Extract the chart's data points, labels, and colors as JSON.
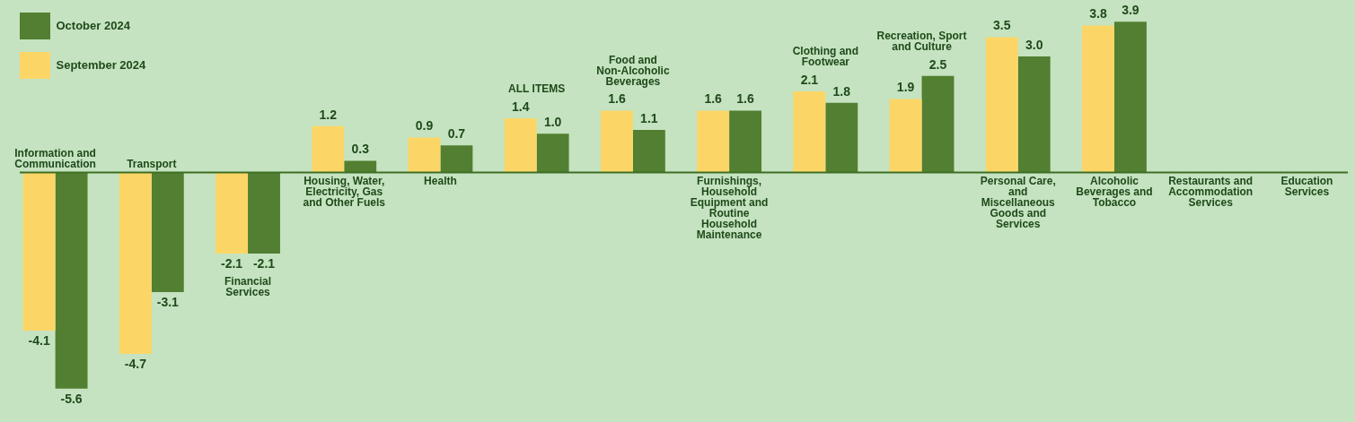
{
  "chart_data": {
    "type": "bar",
    "categories": [
      "Information and Communication",
      "Transport",
      "Financial Services",
      "Housing, Water, Electricity, Gas and Other Fuels",
      "Health",
      "ALL ITEMS",
      "Food and Non-Alcoholic Beverages",
      "Furnishings, Household Equipment and Routine Household Maintenance",
      "Clothing and Footwear",
      "Recreation, Sport and Culture",
      "Personal Care, and Miscellaneous Goods and Services",
      "Alcoholic Beverages and Tobacco",
      "Restaurants and Accommodation Services",
      "Education Services"
    ],
    "series": [
      {
        "name": "September 2024",
        "color": "#fbd667",
        "values": [
          -4.1,
          -4.7,
          -2.1,
          1.2,
          0.9,
          1.4,
          1.6,
          1.6,
          2.1,
          1.9,
          3.5,
          3.8,
          null,
          null
        ],
        "value_labels": [
          "-4.1",
          "-4.7",
          "-2.1",
          "1.2",
          "0.9",
          "1.4",
          "1.6",
          "1.6",
          "2.1",
          "1.9",
          "3.5",
          "3.8",
          null,
          null
        ]
      },
      {
        "name": "October 2024",
        "color": "#527f31",
        "values": [
          -5.6,
          -3.1,
          -2.1,
          0.3,
          0.7,
          1.0,
          1.1,
          1.6,
          1.8,
          2.5,
          3.0,
          3.9,
          null,
          null
        ],
        "value_labels": [
          "-5.6",
          "-3.1",
          "-2.1",
          "0.3",
          "0.7",
          "1.0",
          "1.1",
          "1.6",
          "1.8",
          "2.5",
          "3.0",
          "3.9",
          null,
          null
        ]
      }
    ],
    "legend": "top left"
  }
}
